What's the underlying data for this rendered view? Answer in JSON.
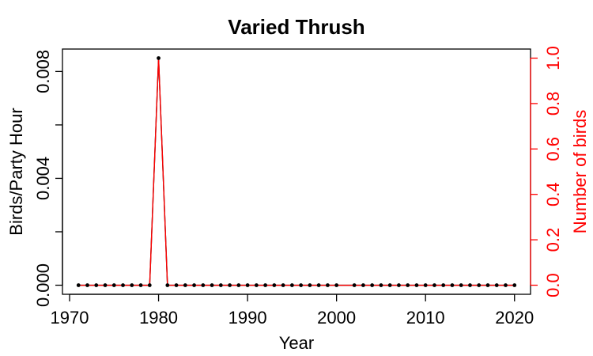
{
  "chart_data": {
    "type": "line",
    "title": "Varied Thrush",
    "xlabel": "Year",
    "ylabel_left": "Birds/Party Hour",
    "ylabel_right": "Number of birds",
    "xlim": [
      1969.2,
      2021.8
    ],
    "ylim_left": [
      -0.00034,
      0.00884
    ],
    "ylim_right": [
      -0.04,
      1.04
    ],
    "x_ticks": [
      1970,
      1980,
      1990,
      2000,
      2010,
      2020
    ],
    "x_tick_labels": [
      "1970",
      "1980",
      "1990",
      "2000",
      "2010",
      "2020"
    ],
    "y_left_ticks": [
      0.0,
      0.002,
      0.004,
      0.006,
      0.008
    ],
    "y_left_tick_labels": [
      "0.000",
      "",
      "0.004",
      "",
      "0.008"
    ],
    "y_right_ticks": [
      0.0,
      0.2,
      0.4,
      0.6,
      0.8,
      1.0
    ],
    "y_right_tick_labels": [
      "0.0",
      "0.2",
      "0.4",
      "0.6",
      "0.8",
      "1.0"
    ],
    "colors": {
      "birds_per_party_hour": "#000000",
      "number_of_birds": "#ff0000"
    },
    "series": [
      {
        "axis": "left",
        "x": [
          1971,
          1972,
          1973,
          1974,
          1975,
          1976,
          1977,
          1978,
          1979,
          1980,
          1981,
          1982,
          1983,
          1984,
          1985,
          1986,
          1987,
          1988,
          1989,
          1990,
          1991,
          1992,
          1993,
          1994,
          1995,
          1996,
          1997,
          1998,
          1999,
          2000,
          2002,
          2003,
          2004,
          2005,
          2006,
          2007,
          2008,
          2009,
          2010,
          2011,
          2012,
          2013,
          2014,
          2015,
          2016,
          2017,
          2018,
          2019,
          2020
        ],
        "values": [
          0,
          0,
          0,
          0,
          0,
          0,
          0,
          0,
          0,
          0.0085,
          0,
          0,
          0,
          0,
          0,
          0,
          0,
          0,
          0,
          0,
          0,
          0,
          0,
          0,
          0,
          0,
          0,
          0,
          0,
          0,
          0,
          0,
          0,
          0,
          0,
          0,
          0,
          0,
          0,
          0,
          0,
          0,
          0,
          0,
          0,
          0,
          0,
          0,
          0
        ]
      },
      {
        "axis": "right",
        "x": [
          1971,
          1972,
          1973,
          1974,
          1975,
          1976,
          1977,
          1978,
          1979,
          1980,
          1981,
          1982,
          1983,
          1984,
          1985,
          1986,
          1987,
          1988,
          1989,
          1990,
          1991,
          1992,
          1993,
          1994,
          1995,
          1996,
          1997,
          1998,
          1999,
          2000,
          2002,
          2003,
          2004,
          2005,
          2006,
          2007,
          2008,
          2009,
          2010,
          2011,
          2012,
          2013,
          2014,
          2015,
          2016,
          2017,
          2018,
          2019,
          2020
        ],
        "values": [
          0,
          0,
          0,
          0,
          0,
          0,
          0,
          0,
          0,
          1,
          0,
          0,
          0,
          0,
          0,
          0,
          0,
          0,
          0,
          0,
          0,
          0,
          0,
          0,
          0,
          0,
          0,
          0,
          0,
          0,
          0,
          0,
          0,
          0,
          0,
          0,
          0,
          0,
          0,
          0,
          0,
          0,
          0,
          0,
          0,
          0,
          0,
          0,
          0
        ]
      }
    ]
  }
}
